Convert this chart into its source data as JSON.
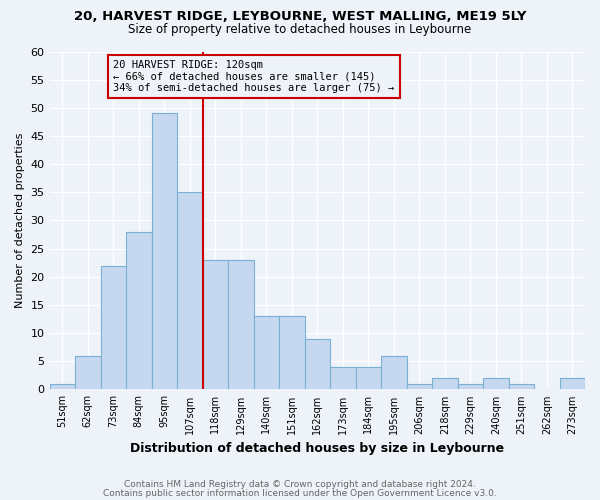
{
  "title1": "20, HARVEST RIDGE, LEYBOURNE, WEST MALLING, ME19 5LY",
  "title2": "Size of property relative to detached houses in Leybourne",
  "xlabel": "Distribution of detached houses by size in Leybourne",
  "ylabel": "Number of detached properties",
  "bin_labels": [
    "51sqm",
    "62sqm",
    "73sqm",
    "84sqm",
    "95sqm",
    "107sqm",
    "118sqm",
    "129sqm",
    "140sqm",
    "151sqm",
    "162sqm",
    "173sqm",
    "184sqm",
    "195sqm",
    "206sqm",
    "218sqm",
    "229sqm",
    "240sqm",
    "251sqm",
    "262sqm",
    "273sqm"
  ],
  "bar_heights": [
    1,
    6,
    22,
    28,
    49,
    35,
    23,
    23,
    13,
    13,
    9,
    4,
    4,
    6,
    1,
    2,
    1,
    2,
    1,
    0,
    2
  ],
  "bar_color": "#c5d8f0",
  "bar_edge_color": "#7bafd4",
  "vline_x_index": 5.5,
  "vline_color": "#cc0000",
  "annotation_line1": "20 HARVEST RIDGE: 120sqm",
  "annotation_line2": "← 66% of detached houses are smaller (145)",
  "annotation_line3": "34% of semi-detached houses are larger (75) →",
  "annotation_box_color": "#cc0000",
  "ylim": [
    0,
    60
  ],
  "yticks": [
    0,
    5,
    10,
    15,
    20,
    25,
    30,
    35,
    40,
    45,
    50,
    55,
    60
  ],
  "footnote1": "Contains HM Land Registry data © Crown copyright and database right 2024.",
  "footnote2": "Contains public sector information licensed under the Open Government Licence v3.0.",
  "bg_color": "#eef2f9"
}
